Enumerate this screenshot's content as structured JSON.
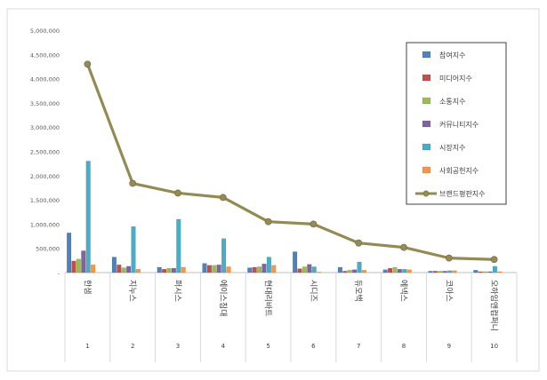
{
  "chart_data": {
    "type": "bar",
    "title": "",
    "xlabel": "",
    "ylabel": "",
    "ylim": [
      0,
      5000000
    ],
    "yticks": [
      "5,000,000",
      "4,500,000",
      "4,000,000",
      "3,500,000",
      "3,000,000",
      "2,500,000",
      "2,000,000",
      "1,500,000",
      "1,000,000",
      "500,000",
      "-"
    ],
    "categories": [
      "한샘",
      "지누스",
      "퍼시스",
      "에이스침대",
      "현대리바트",
      "시디즈",
      "듀오백",
      "에넥스",
      "코아스",
      "오하임앤컴퍼니"
    ],
    "ranks": [
      "1",
      "2",
      "3",
      "4",
      "5",
      "6",
      "7",
      "8",
      "9",
      "10"
    ],
    "legend_position": "right",
    "grid": false,
    "series": [
      {
        "name": "참여지수",
        "kind": "bar",
        "color": "#4f81bd",
        "values": [
          820000,
          320000,
          110000,
          190000,
          100000,
          430000,
          110000,
          60000,
          30000,
          50000
        ]
      },
      {
        "name": "미디어지수",
        "kind": "bar",
        "color": "#c0504d",
        "values": [
          240000,
          160000,
          70000,
          150000,
          110000,
          80000,
          30000,
          90000,
          30000,
          20000
        ]
      },
      {
        "name": "소통지수",
        "kind": "bar",
        "color": "#9bbb59",
        "values": [
          280000,
          100000,
          90000,
          150000,
          120000,
          120000,
          50000,
          110000,
          30000,
          20000
        ]
      },
      {
        "name": "커뮤니티지수",
        "kind": "bar",
        "color": "#8064a2",
        "values": [
          450000,
          130000,
          90000,
          160000,
          180000,
          170000,
          60000,
          70000,
          30000,
          20000
        ]
      },
      {
        "name": "시장지수",
        "kind": "bar",
        "color": "#4bacc6",
        "values": [
          2300000,
          950000,
          1100000,
          700000,
          320000,
          120000,
          220000,
          70000,
          40000,
          130000
        ]
      },
      {
        "name": "사회공헌지수",
        "kind": "bar",
        "color": "#f79646",
        "values": [
          160000,
          70000,
          110000,
          120000,
          150000,
          10000,
          50000,
          60000,
          40000,
          20000
        ]
      },
      {
        "name": "브랜드평판지수",
        "kind": "line",
        "color": "#948a54",
        "values": [
          4300000,
          1840000,
          1640000,
          1550000,
          1050000,
          1000000,
          610000,
          520000,
          300000,
          270000
        ]
      }
    ]
  }
}
